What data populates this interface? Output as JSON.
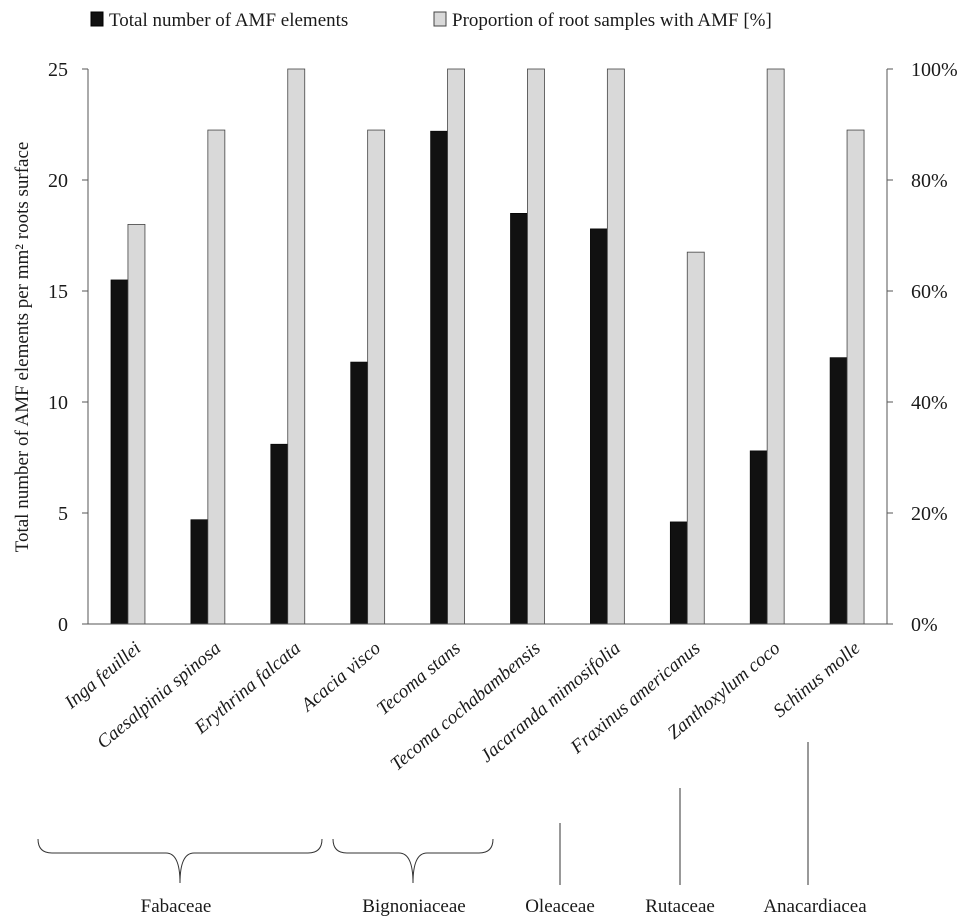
{
  "chart_data": {
    "type": "bar",
    "title": "",
    "xlabel": "",
    "ylabel": "Total number of AMF elements per mm² roots surface",
    "y2label": "",
    "ylim": [
      0,
      25
    ],
    "y2lim": [
      0,
      100
    ],
    "yticks": [
      "0",
      "5",
      "10",
      "15",
      "20",
      "25"
    ],
    "y2ticks": [
      "0%",
      "20%",
      "40%",
      "60%",
      "80%",
      "100%"
    ],
    "grid": false,
    "legend_position": "top",
    "categories": [
      "Inga feuillei",
      "Caesalpinia spinosa",
      "Erythrina falcata",
      "Acacia visco",
      "Tecoma stans",
      "Tecoma cochabambensis",
      "Jacaranda mimosifolia",
      "Fraxinus americanus",
      "Zanthoxylum coco",
      "Schinus molle"
    ],
    "series": [
      {
        "name": "Total number of AMF elements",
        "axis": "left",
        "color": "#111111",
        "values": [
          15.5,
          4.7,
          8.1,
          11.8,
          22.2,
          18.5,
          17.8,
          4.6,
          7.8,
          12.0
        ]
      },
      {
        "name": "Proportion of root samples with AMF [%]",
        "axis": "right",
        "color": "#d9d9d9",
        "values": [
          72,
          89,
          100,
          89,
          100,
          100,
          100,
          67,
          100,
          89
        ]
      }
    ],
    "groups": [
      {
        "label": "Fabaceae",
        "start": 0,
        "end": 3,
        "marker": "brace"
      },
      {
        "label": "Bignoniaceae",
        "start": 4,
        "end": 5,
        "marker": "brace"
      },
      {
        "label": "Oleaceae",
        "start": 6,
        "end": 6,
        "marker": "line"
      },
      {
        "label": "Rutaceae",
        "start": 7,
        "end": 7,
        "marker": "line"
      },
      {
        "label": "Anacardiacea",
        "start": 8,
        "end": 9,
        "marker": "line"
      }
    ]
  }
}
